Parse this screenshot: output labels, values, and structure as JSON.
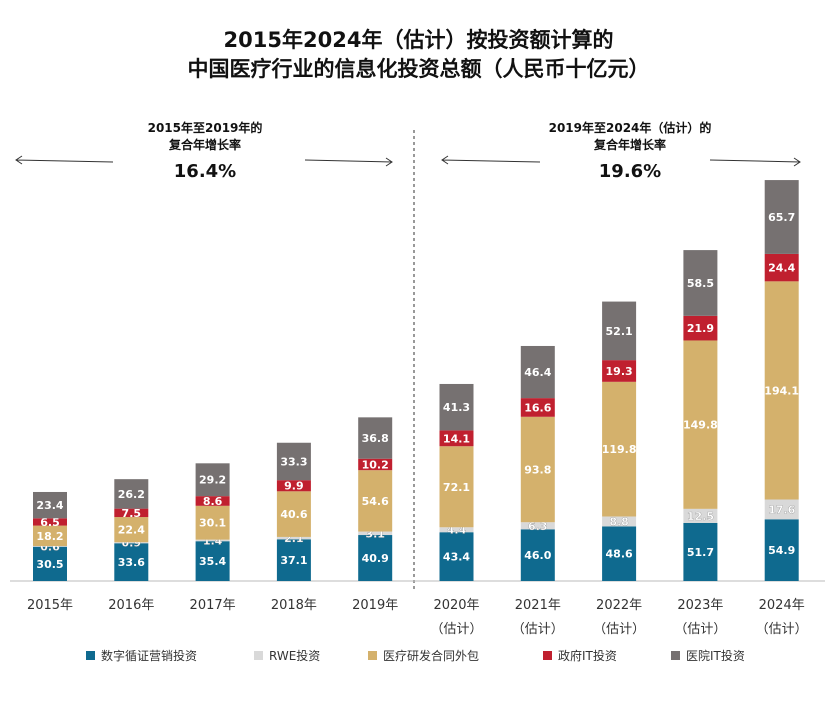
{
  "chart_data": {
    "type": "stacked_bar",
    "title": "2015年2024年（估计）按投资额计算的\n中国医疗行业的信息化投资总额（人民币十亿元）",
    "annotations": [
      {
        "text": "2015年至2019年的\n复合年增长率",
        "value": "16.4%"
      },
      {
        "text": "2019年至2024年（估计）的\n复合年增长率",
        "value": "19.6%"
      }
    ],
    "categories": [
      "2015年",
      "2016年",
      "2017年",
      "2018年",
      "2019年",
      "2020年\n（估计）",
      "2021年\n（估计）",
      "2022年\n（估计）",
      "2023年\n（估计）",
      "2024年\n（估计）"
    ],
    "series": [
      {
        "name": "数字循证营销投资",
        "color": "#0f6a8f",
        "values": [
          30.5,
          33.6,
          35.4,
          37.1,
          40.9,
          43.4,
          46.0,
          48.6,
          51.7,
          54.9
        ],
        "value_labels": [
          "30.5",
          "33.6",
          "35.4",
          "37.1",
          "40.9",
          "43.4",
          "46.0",
          "48.6",
          "51.7",
          "54.9"
        ]
      },
      {
        "name": "RWE投资",
        "color": "#d9d9d9",
        "values": [
          0.6,
          0.9,
          1.4,
          2.1,
          3.1,
          4.4,
          6.3,
          8.8,
          12.5,
          17.6
        ],
        "value_labels": [
          "0.6",
          "0.9",
          "1.4",
          "2.1",
          "3.1",
          "4.4",
          "6.3",
          "8.8",
          "12.5",
          "17.6"
        ]
      },
      {
        "name": "医疗研发合同外包",
        "color": "#d4b16c",
        "values": [
          18.2,
          22.4,
          30.1,
          40.6,
          54.6,
          72.1,
          93.8,
          119.8,
          149.8,
          194.1
        ],
        "value_labels": [
          "18.2",
          "22.4",
          "30.1",
          "40.6",
          "54.6",
          "72.1",
          "93.8",
          "119.8",
          "149.8",
          "194.1"
        ]
      },
      {
        "name": "政府IT投资",
        "color": "#c0202f",
        "values": [
          6.5,
          7.5,
          8.6,
          9.9,
          10.2,
          14.1,
          16.6,
          19.3,
          21.9,
          24.4
        ],
        "value_labels": [
          "6.5",
          "7.5",
          "8.6",
          "9.9",
          "10.2",
          "14.1",
          "16.6",
          "19.3",
          "21.9",
          "24.4"
        ]
      },
      {
        "name": "医院IT投资",
        "color": "#767171",
        "values": [
          23.4,
          26.2,
          29.2,
          33.3,
          36.8,
          41.3,
          46.4,
          52.1,
          58.5,
          65.7
        ],
        "value_labels": [
          "23.4",
          "26.2",
          "29.2",
          "33.3",
          "36.8",
          "41.3",
          "46.4",
          "52.1",
          "58.5",
          "65.7"
        ]
      }
    ]
  }
}
